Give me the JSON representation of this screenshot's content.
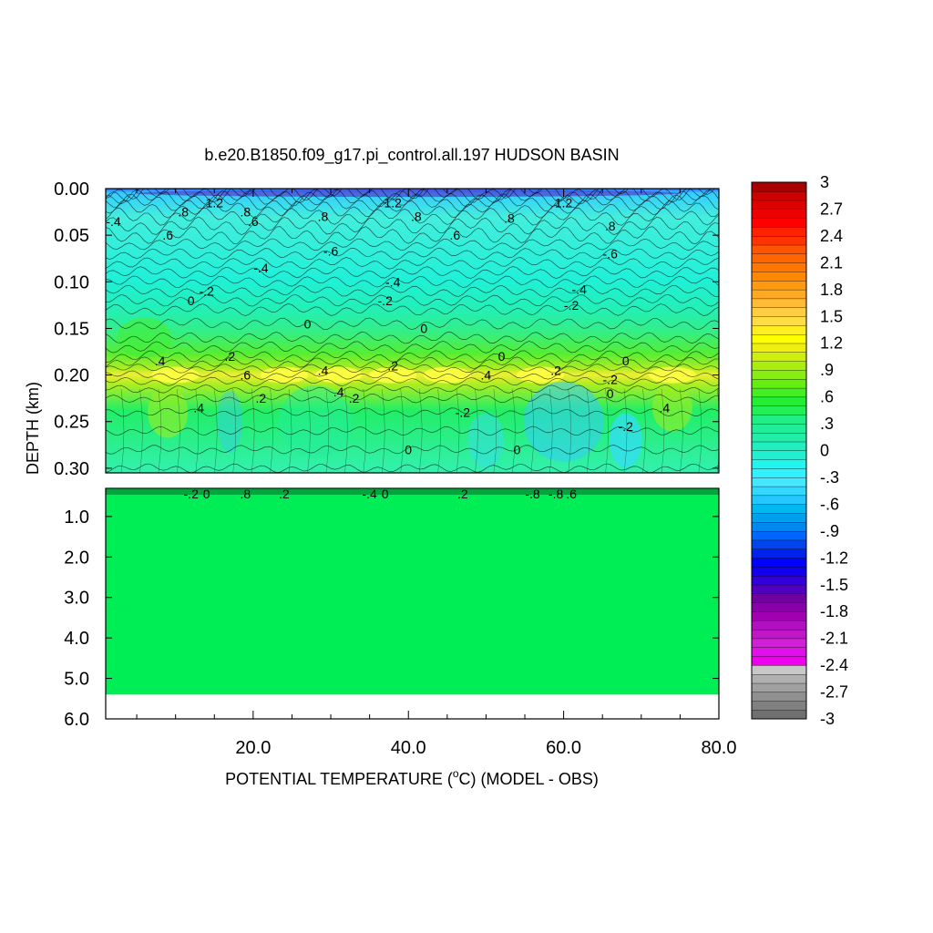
{
  "chart_data": {
    "type": "heatmap",
    "title": "b.e20.B1850.f09_g17.pi_control.all.197 HUDSON BASIN",
    "xlabel": "POTENTIAL TEMPERATURE (",
    "xlabel_unit_sup": "o",
    "xlabel_unit": "C",
    "xlabel_suffix": ") (MODEL - OBS)",
    "ylabel": "DEPTH (km)",
    "x_ticks": [
      "20.0",
      "40.0",
      "60.0",
      "80.0"
    ],
    "x_tick_values": [
      20,
      40,
      60,
      80
    ],
    "xlim": [
      1,
      80
    ],
    "upper_panel": {
      "ylim": [
        0.0,
        0.305
      ],
      "y_ticks": [
        "0.00",
        "0.05",
        "0.10",
        "0.15",
        "0.20",
        "0.25",
        "0.30"
      ],
      "y_tick_values": [
        0.0,
        0.05,
        0.1,
        0.15,
        0.2,
        0.25,
        0.3
      ]
    },
    "lower_panel": {
      "ylim": [
        0.305,
        6.0
      ],
      "y_ticks": [
        "1.0",
        "2.0",
        "3.0",
        "4.0",
        "5.0",
        "6.0"
      ],
      "y_tick_values": [
        1.0,
        2.0,
        3.0,
        4.0,
        5.0,
        6.0
      ],
      "filled_to_depth": 5.4,
      "fill_value": 0.0
    },
    "colorbar": {
      "labels": [
        "3",
        "2.7",
        "2.4",
        "2.1",
        "1.8",
        "1.5",
        "1.2",
        ".9",
        ".6",
        ".3",
        "0",
        "-.3",
        "-.6",
        "-.9",
        "-1.2",
        "-1.5",
        "-1.8",
        "-2.1",
        "-2.4",
        "-2.7",
        "-3"
      ],
      "values": [
        3,
        2.7,
        2.4,
        2.1,
        1.8,
        1.5,
        1.2,
        0.9,
        0.6,
        0.3,
        0,
        -0.3,
        -0.6,
        -0.9,
        -1.2,
        -1.5,
        -1.8,
        -2.1,
        -2.4,
        -2.7,
        -3
      ],
      "min": -3,
      "max": 3,
      "levels": 60
    },
    "contour_labels": [
      {
        "text": ".8",
        "x": 11,
        "y": 0.025
      },
      {
        "text": ".6",
        "x": 9,
        "y": 0.05
      },
      {
        "text": "-.4",
        "x": 2,
        "y": 0.035
      },
      {
        "text": "1.2",
        "x": 15,
        "y": 0.015
      },
      {
        "text": ".8",
        "x": 19,
        "y": 0.025
      },
      {
        "text": ".6",
        "x": 20,
        "y": 0.035
      },
      {
        "text": ".8",
        "x": 29,
        "y": 0.03
      },
      {
        "text": "-.6",
        "x": 30,
        "y": 0.067
      },
      {
        "text": "-.4",
        "x": 21,
        "y": 0.085
      },
      {
        "text": "-.2",
        "x": 14,
        "y": 0.11
      },
      {
        "text": "0",
        "x": 12,
        "y": 0.12
      },
      {
        "text": "1.2",
        "x": 38,
        "y": 0.015
      },
      {
        "text": ".8",
        "x": 41,
        "y": 0.03
      },
      {
        "text": ".6",
        "x": 46,
        "y": 0.05
      },
      {
        "text": "-.4",
        "x": 38,
        "y": 0.1
      },
      {
        "text": "-.2",
        "x": 37,
        "y": 0.12
      },
      {
        "text": ".8",
        "x": 53,
        "y": 0.032
      },
      {
        "text": "1.2",
        "x": 60,
        "y": 0.015
      },
      {
        "text": ".8",
        "x": 66,
        "y": 0.04
      },
      {
        "text": "-.6",
        "x": 66,
        "y": 0.07
      },
      {
        "text": "-.4",
        "x": 62,
        "y": 0.108
      },
      {
        "text": "-.2",
        "x": 61,
        "y": 0.125
      },
      {
        "text": "0",
        "x": 27,
        "y": 0.145
      },
      {
        "text": "0",
        "x": 42,
        "y": 0.15
      },
      {
        "text": "0",
        "x": 52,
        "y": 0.18
      },
      {
        "text": "0",
        "x": 68,
        "y": 0.185
      },
      {
        "text": ".4",
        "x": 8,
        "y": 0.185
      },
      {
        "text": ".2",
        "x": 17,
        "y": 0.18
      },
      {
        "text": ".6",
        "x": 19,
        "y": 0.2
      },
      {
        "text": ".4",
        "x": 29,
        "y": 0.195
      },
      {
        "text": ".2",
        "x": 38,
        "y": 0.19
      },
      {
        "text": ".4",
        "x": 31,
        "y": 0.218
      },
      {
        "text": ".2",
        "x": 33,
        "y": 0.225
      },
      {
        "text": ".2",
        "x": 21,
        "y": 0.225
      },
      {
        "text": ".4",
        "x": 13,
        "y": 0.235
      },
      {
        "text": ".4",
        "x": 50,
        "y": 0.2
      },
      {
        "text": ".2",
        "x": 59,
        "y": 0.195
      },
      {
        "text": "-.2",
        "x": 66,
        "y": 0.205
      },
      {
        "text": "0",
        "x": 66,
        "y": 0.22
      },
      {
        "text": "-.2",
        "x": 47,
        "y": 0.24
      },
      {
        "text": "-.2",
        "x": 68,
        "y": 0.255
      },
      {
        "text": ".4",
        "x": 73,
        "y": 0.235
      },
      {
        "text": "0",
        "x": 40,
        "y": 0.28
      },
      {
        "text": "0",
        "x": 54,
        "y": 0.28
      }
    ],
    "lower_contour_labels": [
      {
        "text": "-.2",
        "x": 12,
        "y": 0.33
      },
      {
        "text": "0",
        "x": 14,
        "y": 0.33
      },
      {
        "text": ".8",
        "x": 19,
        "y": 0.33
      },
      {
        "text": ".2",
        "x": 24,
        "y": 0.33
      },
      {
        "text": "-.4",
        "x": 35,
        "y": 0.33
      },
      {
        "text": "0",
        "x": 37,
        "y": 0.33
      },
      {
        "text": ".2",
        "x": 47,
        "y": 0.33
      },
      {
        "text": "-.8",
        "x": 56,
        "y": 0.33
      },
      {
        "text": "-.8",
        "x": 59,
        "y": 0.33
      },
      {
        "text": ".6",
        "x": 61,
        "y": 0.33
      }
    ]
  }
}
